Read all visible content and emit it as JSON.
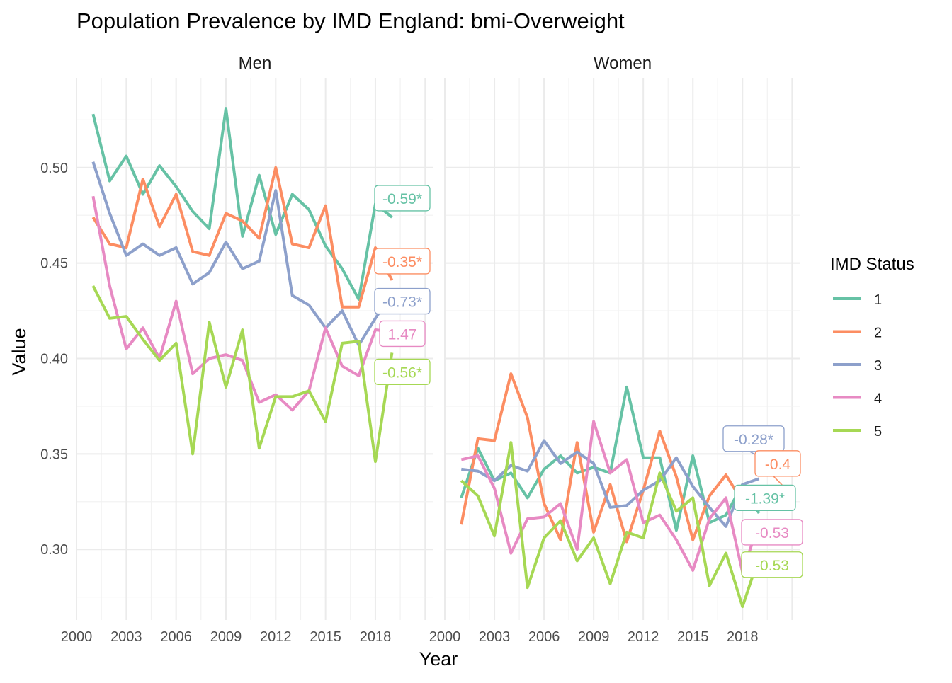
{
  "chart_data": {
    "type": "line",
    "title": "Population Prevalence by IMD England: bmi-Overweight",
    "xlabel": "Year",
    "ylabel": "Value",
    "ylim": [
      0.263,
      0.547
    ],
    "xlim": [
      2000,
      2021.5
    ],
    "x_ticks": [
      2000,
      2003,
      2006,
      2009,
      2012,
      2015,
      2018
    ],
    "x_tick_labels": [
      "2000",
      "2003",
      "2006",
      "2009",
      "2012",
      "2015",
      "2018"
    ],
    "y_ticks": [
      0.3,
      0.35,
      0.4,
      0.45,
      0.5
    ],
    "y_tick_labels": [
      "0.30",
      "0.35",
      "0.40",
      "0.45",
      "0.50"
    ],
    "grid": true,
    "legend": {
      "title": "IMD Status",
      "position": "right",
      "entries": [
        {
          "label": "1",
          "color": "#66c2a5"
        },
        {
          "label": "2",
          "color": "#fc8d62"
        },
        {
          "label": "3",
          "color": "#8da0cb"
        },
        {
          "label": "4",
          "color": "#e78ac3"
        },
        {
          "label": "5",
          "color": "#a6d854"
        }
      ]
    },
    "x": [
      2001,
      2002,
      2003,
      2004,
      2005,
      2006,
      2007,
      2008,
      2009,
      2010,
      2011,
      2012,
      2013,
      2014,
      2015,
      2016,
      2017,
      2018,
      2019
    ],
    "panels": [
      {
        "title": "Men",
        "series": [
          {
            "name": "1",
            "color": "#66c2a5",
            "values": [
              0.528,
              0.493,
              0.506,
              0.486,
              0.501,
              0.49,
              0.477,
              0.468,
              0.531,
              0.464,
              0.496,
              0.465,
              0.486,
              0.478,
              0.459,
              0.447,
              0.431,
              0.481,
              0.474
            ]
          },
          {
            "name": "2",
            "color": "#fc8d62",
            "values": [
              0.474,
              0.46,
              0.458,
              0.494,
              0.469,
              0.486,
              0.456,
              0.454,
              0.476,
              0.472,
              0.463,
              0.5,
              0.46,
              0.458,
              0.48,
              0.427,
              0.427,
              0.458,
              0.441
            ]
          },
          {
            "name": "3",
            "color": "#8da0cb",
            "values": [
              0.503,
              0.476,
              0.454,
              0.46,
              0.454,
              0.458,
              0.439,
              0.445,
              0.461,
              0.447,
              0.451,
              0.488,
              0.433,
              0.428,
              0.416,
              0.425,
              0.407,
              0.421,
              0.434
            ]
          },
          {
            "name": "4",
            "color": "#e78ac3",
            "values": [
              0.485,
              0.438,
              0.405,
              0.416,
              0.4,
              0.43,
              0.392,
              0.4,
              0.402,
              0.399,
              0.377,
              0.381,
              0.373,
              0.383,
              0.416,
              0.396,
              0.391,
              0.415,
              0.414
            ]
          },
          {
            "name": "5",
            "color": "#a6d854",
            "values": [
              0.438,
              0.421,
              0.422,
              0.41,
              0.399,
              0.408,
              0.35,
              0.419,
              0.385,
              0.415,
              0.353,
              0.38,
              0.38,
              0.383,
              0.367,
              0.408,
              0.409,
              0.346,
              0.403
            ]
          }
        ],
        "annotations": [
          {
            "text": "-0.59*",
            "series": "1",
            "y": 0.484
          },
          {
            "text": "-0.35*",
            "series": "2",
            "y": 0.451
          },
          {
            "text": "-0.73*",
            "series": "3",
            "y": 0.43
          },
          {
            "text": "1.47",
            "series": "4",
            "y": 0.413
          },
          {
            "text": "-0.56*",
            "series": "5",
            "y": 0.393
          }
        ]
      },
      {
        "title": "Women",
        "series": [
          {
            "name": "1",
            "color": "#66c2a5",
            "values": [
              0.327,
              0.353,
              0.336,
              0.34,
              0.327,
              0.342,
              0.349,
              0.34,
              0.343,
              0.34,
              0.385,
              0.348,
              0.348,
              0.31,
              0.349,
              0.314,
              0.318,
              0.334,
              0.319
            ]
          },
          {
            "name": "2",
            "color": "#fc8d62",
            "values": [
              0.313,
              0.358,
              0.357,
              0.392,
              0.369,
              0.324,
              0.305,
              0.356,
              0.309,
              0.334,
              0.304,
              0.331,
              0.362,
              0.338,
              0.305,
              0.328,
              0.339,
              0.325,
              0.325
            ]
          },
          {
            "name": "3",
            "color": "#8da0cb",
            "values": [
              0.342,
              0.341,
              0.336,
              0.344,
              0.341,
              0.357,
              0.345,
              0.351,
              0.345,
              0.322,
              0.323,
              0.331,
              0.336,
              0.348,
              0.333,
              0.322,
              0.312,
              0.334,
              0.337
            ]
          },
          {
            "name": "4",
            "color": "#e78ac3",
            "values": [
              0.347,
              0.349,
              0.332,
              0.298,
              0.316,
              0.317,
              0.324,
              0.3,
              0.367,
              0.34,
              0.347,
              0.314,
              0.318,
              0.305,
              0.289,
              0.316,
              0.327,
              0.288,
              0.314
            ]
          },
          {
            "name": "5",
            "color": "#a6d854",
            "values": [
              0.336,
              0.328,
              0.307,
              0.356,
              0.28,
              0.306,
              0.315,
              0.294,
              0.306,
              0.282,
              0.309,
              0.306,
              0.34,
              0.32,
              0.327,
              0.281,
              0.298,
              0.27,
              0.296
            ]
          }
        ],
        "annotations": [
          {
            "text": "-0.28*",
            "series": "3",
            "y": 0.358
          },
          {
            "text": "-0.4",
            "series": "2",
            "y": 0.345
          },
          {
            "text": "-1.39*",
            "series": "1",
            "y": 0.327
          },
          {
            "text": "-0.53",
            "series": "4",
            "y": 0.309
          },
          {
            "text": "-0.53",
            "series": "5",
            "y": 0.292
          }
        ]
      }
    ]
  }
}
